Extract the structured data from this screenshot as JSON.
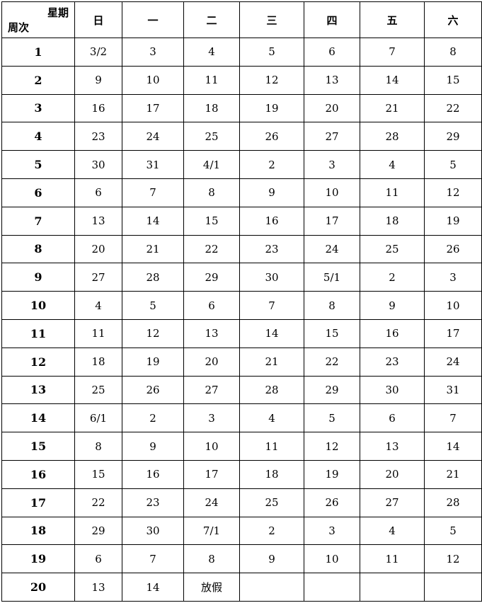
{
  "header": {
    "corner_top": "星期",
    "corner_bottom": "周次",
    "days": [
      "日",
      "一",
      "二",
      "三",
      "四",
      "五",
      "六"
    ]
  },
  "rows": [
    {
      "week": "1",
      "days": [
        "3/2",
        "3",
        "4",
        "5",
        "6",
        "7",
        "8"
      ]
    },
    {
      "week": "2",
      "days": [
        "9",
        "10",
        "11",
        "12",
        "13",
        "14",
        "15"
      ]
    },
    {
      "week": "3",
      "days": [
        "16",
        "17",
        "18",
        "19",
        "20",
        "21",
        "22"
      ]
    },
    {
      "week": "4",
      "days": [
        "23",
        "24",
        "25",
        "26",
        "27",
        "28",
        "29"
      ]
    },
    {
      "week": "5",
      "days": [
        "30",
        "31",
        "4/1",
        "2",
        "3",
        "4",
        "5"
      ]
    },
    {
      "week": "6",
      "days": [
        "6",
        "7",
        "8",
        "9",
        "10",
        "11",
        "12"
      ]
    },
    {
      "week": "7",
      "days": [
        "13",
        "14",
        "15",
        "16",
        "17",
        "18",
        "19"
      ]
    },
    {
      "week": "8",
      "days": [
        "20",
        "21",
        "22",
        "23",
        "24",
        "25",
        "26"
      ]
    },
    {
      "week": "9",
      "days": [
        "27",
        "28",
        "29",
        "30",
        "5/1",
        "2",
        "3"
      ]
    },
    {
      "week": "10",
      "days": [
        "4",
        "5",
        "6",
        "7",
        "8",
        "9",
        "10"
      ]
    },
    {
      "week": "11",
      "days": [
        "11",
        "12",
        "13",
        "14",
        "15",
        "16",
        "17"
      ]
    },
    {
      "week": "12",
      "days": [
        "18",
        "19",
        "20",
        "21",
        "22",
        "23",
        "24"
      ]
    },
    {
      "week": "13",
      "days": [
        "25",
        "26",
        "27",
        "28",
        "29",
        "30",
        "31"
      ]
    },
    {
      "week": "14",
      "days": [
        "6/1",
        "2",
        "3",
        "4",
        "5",
        "6",
        "7"
      ]
    },
    {
      "week": "15",
      "days": [
        "8",
        "9",
        "10",
        "11",
        "12",
        "13",
        "14"
      ]
    },
    {
      "week": "16",
      "days": [
        "15",
        "16",
        "17",
        "18",
        "19",
        "20",
        "21"
      ]
    },
    {
      "week": "17",
      "days": [
        "22",
        "23",
        "24",
        "25",
        "26",
        "27",
        "28"
      ]
    },
    {
      "week": "18",
      "days": [
        "29",
        "30",
        "7/1",
        "2",
        "3",
        "4",
        "5"
      ]
    },
    {
      "week": "19",
      "days": [
        "6",
        "7",
        "8",
        "9",
        "10",
        "11",
        "12"
      ]
    },
    {
      "week": "20",
      "days": [
        "13",
        "14",
        "放假",
        "",
        "",
        "",
        ""
      ]
    }
  ]
}
